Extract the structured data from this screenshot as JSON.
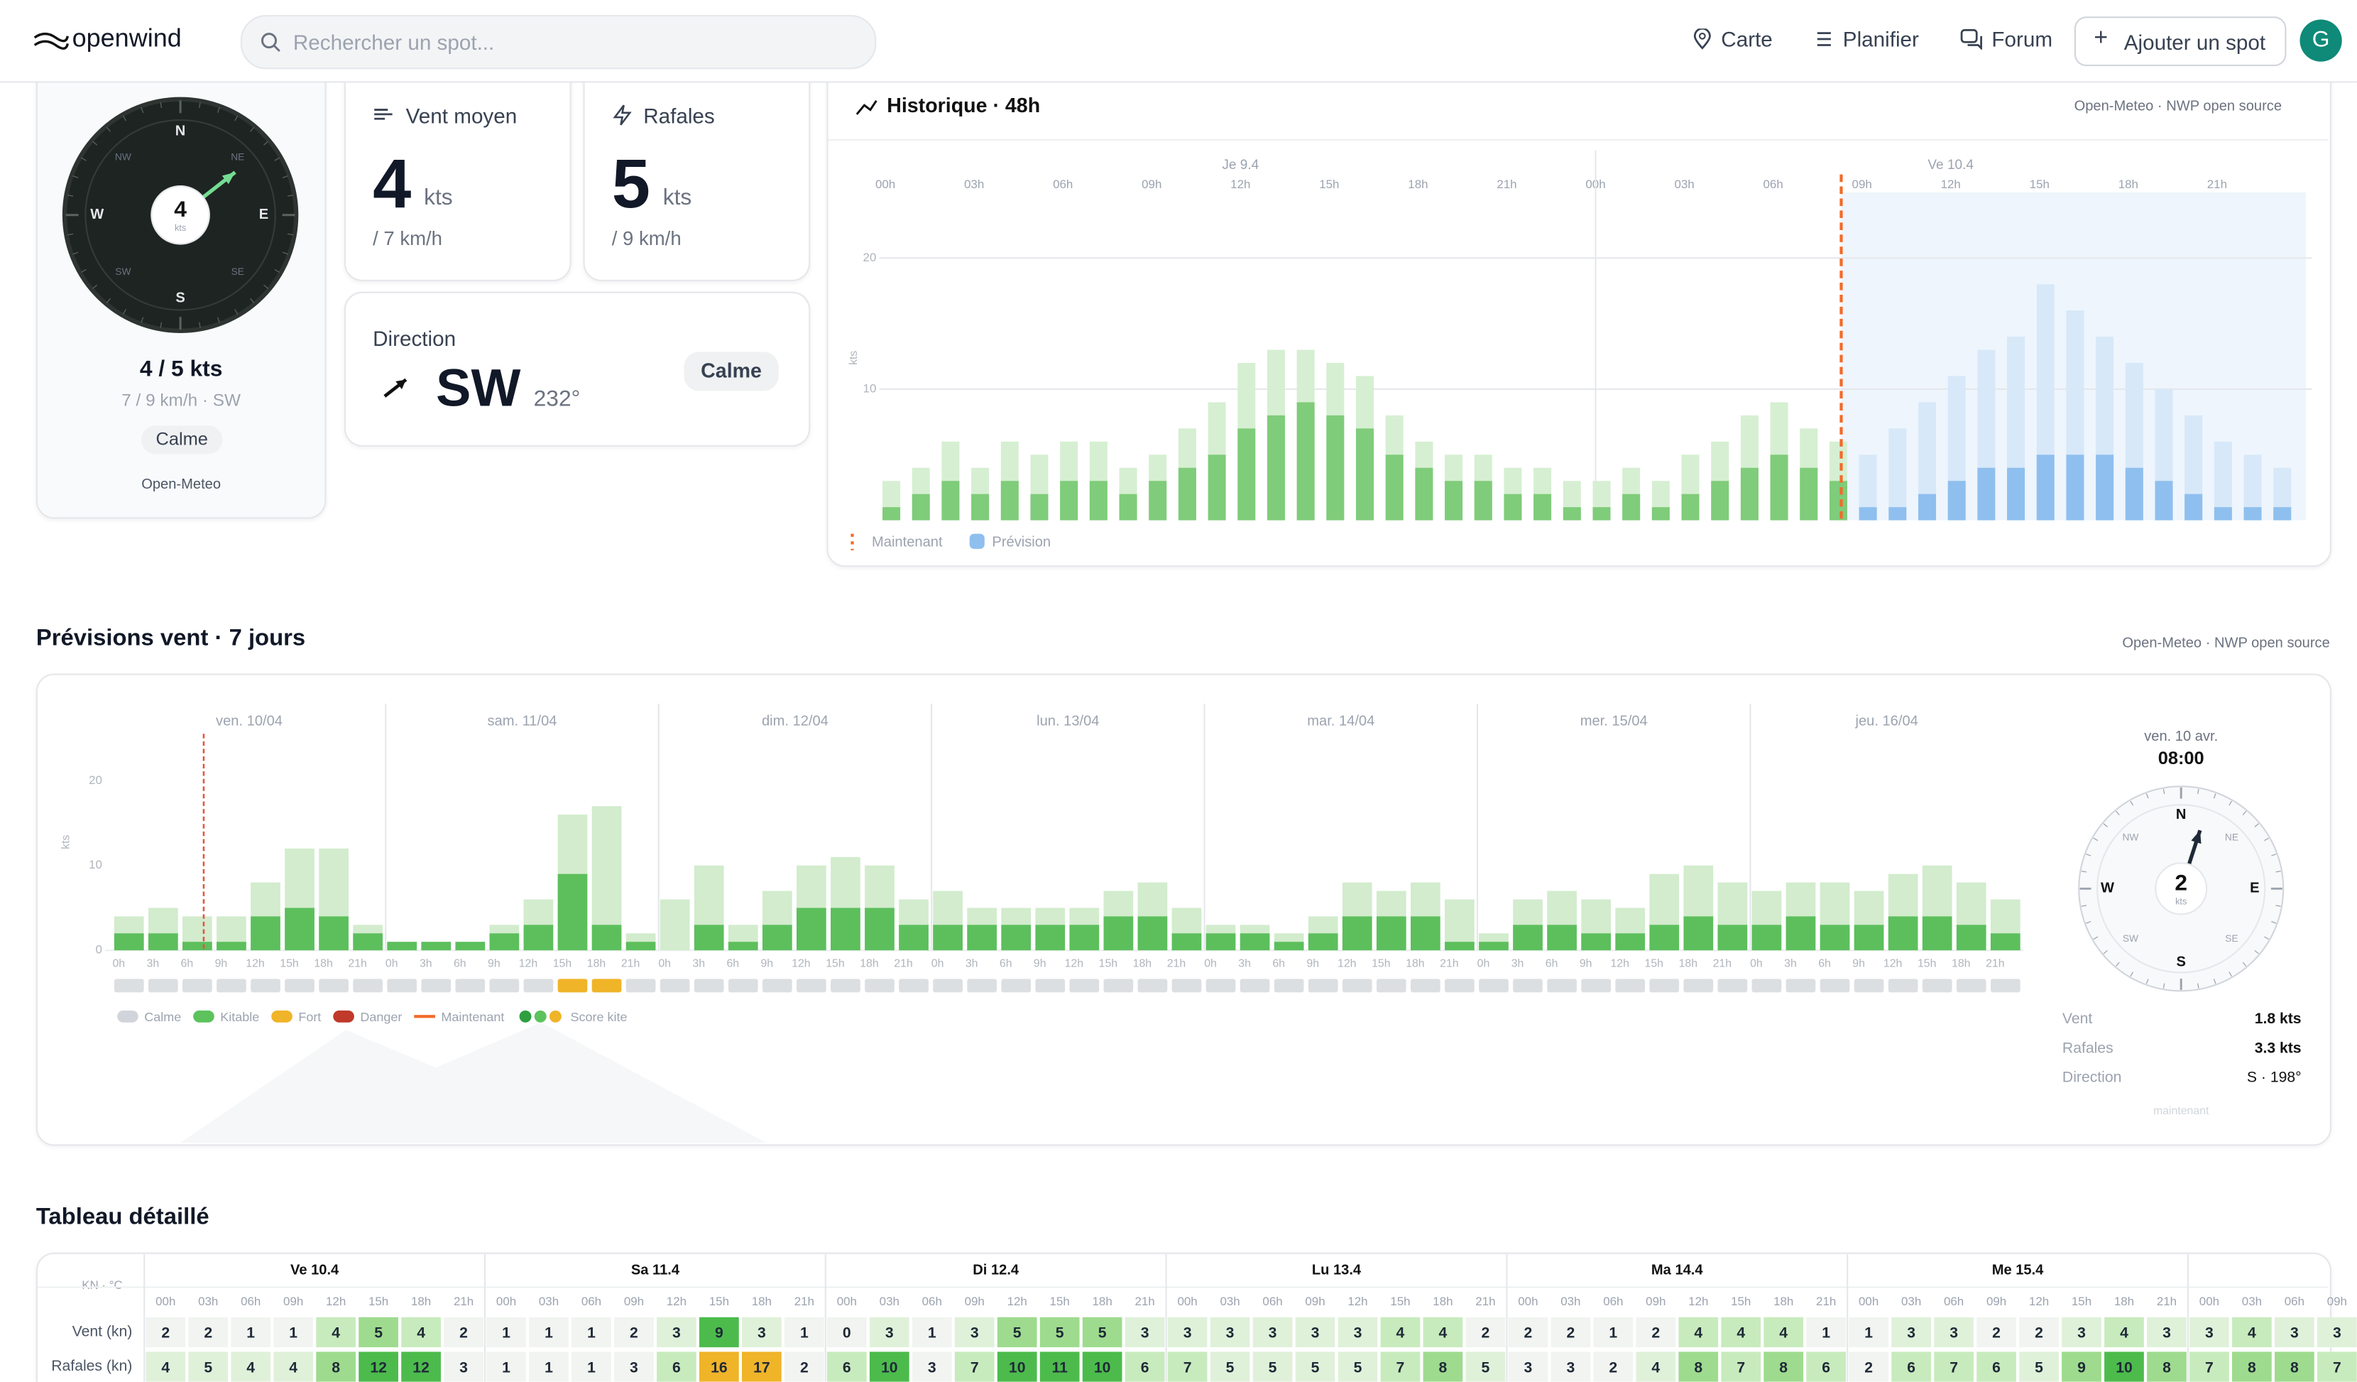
{
  "header": {
    "logo": "openwind",
    "search_placeholder": "Rechercher un spot...",
    "nav": [
      "Carte",
      "Planifier",
      "Forum"
    ],
    "add_spot": "Ajouter un spot",
    "avatar": "G"
  },
  "current": {
    "speed": "4",
    "unit": "kts",
    "directions": [
      "N",
      "NE",
      "E",
      "SE",
      "S",
      "SW",
      "W",
      "NW"
    ],
    "summary": "4 / 5 kts",
    "summary_sub": "7 / 9 km/h · SW",
    "status": "Calme",
    "source": "Open-Meteo"
  },
  "cards": {
    "wind": {
      "title": "Vent moyen",
      "value": "4",
      "unit": "kts",
      "sub": "/ 7 km/h"
    },
    "gust": {
      "title": "Rafales",
      "value": "5",
      "unit": "kts",
      "sub": "/ 9 km/h"
    },
    "direction": {
      "title": "Direction",
      "value": "SW",
      "degrees": "232°",
      "status": "Calme"
    }
  },
  "sections": {
    "forecast": "Prévisions vent · 7 jours",
    "table": "Tableau détaillé"
  },
  "chart_data": [
    {
      "type": "bar",
      "title": "Historique · 48h",
      "source": "Open-Meteo · NWP open source",
      "y_label": "kts",
      "xlim": [
        0,
        48
      ],
      "ylim": [
        0,
        25
      ],
      "yticks": [
        10,
        20
      ],
      "grid": true,
      "xticks": [
        {
          "value": 0,
          "label": "00h"
        },
        {
          "value": 3,
          "label": "03h"
        },
        {
          "value": 6,
          "label": "06h"
        },
        {
          "value": 9,
          "label": "09h"
        },
        {
          "value": 12,
          "label": "12h"
        },
        {
          "value": 15,
          "label": "15h"
        },
        {
          "value": 18,
          "label": "18h"
        },
        {
          "value": 21,
          "label": "21h"
        },
        {
          "value": 24,
          "label": "00h"
        },
        {
          "value": 27,
          "label": "03h"
        },
        {
          "value": 30,
          "label": "06h"
        },
        {
          "value": 33,
          "label": "09h"
        },
        {
          "value": 36,
          "label": "12h"
        },
        {
          "value": 39,
          "label": "15h"
        },
        {
          "value": 42,
          "label": "18h"
        },
        {
          "value": 45,
          "label": "21h"
        }
      ],
      "day_labels": [
        {
          "value": 12,
          "label": "Je 9.4"
        },
        {
          "value": 36,
          "label": "Ve 10.4"
        }
      ],
      "now": {
        "value": 32.3,
        "label": "Maintenant"
      },
      "x": [
        0,
        1,
        2,
        3,
        4,
        5,
        6,
        7,
        8,
        9,
        10,
        11,
        12,
        13,
        14,
        15,
        16,
        17,
        18,
        19,
        20,
        21,
        22,
        23,
        24,
        25,
        26,
        27,
        28,
        29,
        30,
        31,
        32,
        33,
        34,
        35,
        36,
        37,
        38,
        39,
        40,
        41,
        42,
        43,
        44,
        45,
        46,
        47
      ],
      "series": [
        {
          "color": "#d6efd2",
          "values": [
            3,
            4,
            6,
            4,
            6,
            5,
            6,
            6,
            4,
            5,
            7,
            9,
            12,
            13,
            13,
            12,
            11,
            8,
            6,
            5,
            5,
            4,
            4,
            3,
            3,
            4,
            3,
            5,
            6,
            8,
            9,
            7,
            6,
            null,
            null,
            null,
            null,
            null,
            null,
            null,
            null,
            null,
            null,
            null,
            null,
            null,
            null,
            null
          ]
        },
        {
          "color": "#7fcc7a",
          "values": [
            1,
            2,
            3,
            2,
            3,
            2,
            3,
            3,
            2,
            3,
            4,
            5,
            7,
            8,
            9,
            8,
            7,
            5,
            4,
            3,
            3,
            2,
            2,
            1,
            1,
            2,
            1,
            2,
            3,
            4,
            5,
            4,
            3,
            null,
            null,
            null,
            null,
            null,
            null,
            null,
            null,
            null,
            null,
            null,
            null,
            null,
            null,
            null
          ]
        },
        {
          "color": "#d7e8f9",
          "values": [
            null,
            null,
            null,
            null,
            null,
            null,
            null,
            null,
            null,
            null,
            null,
            null,
            null,
            null,
            null,
            null,
            null,
            null,
            null,
            null,
            null,
            null,
            null,
            null,
            null,
            null,
            null,
            null,
            null,
            null,
            null,
            null,
            null,
            5,
            7,
            9,
            11,
            13,
            14,
            18,
            16,
            14,
            12,
            10,
            8,
            6,
            5,
            4
          ]
        },
        {
          "name": "Prévision",
          "color": "#8fbfee",
          "values": [
            null,
            null,
            null,
            null,
            null,
            null,
            null,
            null,
            null,
            null,
            null,
            null,
            null,
            null,
            null,
            null,
            null,
            null,
            null,
            null,
            null,
            null,
            null,
            null,
            null,
            null,
            null,
            null,
            null,
            null,
            null,
            null,
            null,
            1,
            1,
            2,
            3,
            4,
            4,
            5,
            5,
            5,
            4,
            3,
            2,
            1,
            1,
            1
          ]
        }
      ]
    },
    {
      "type": "bar",
      "title": "Prévisions vent · 7 jours",
      "source": "Open-Meteo · NWP open source",
      "y_label": "kts",
      "xlim": [
        0,
        168
      ],
      "ylim": [
        0,
        25
      ],
      "yticks": [
        0,
        10,
        20
      ],
      "days": [
        "ven. 10/04",
        "sam. 11/04",
        "dim. 12/04",
        "lun. 13/04",
        "mar. 14/04",
        "mer. 15/04",
        "jeu. 16/04"
      ],
      "hours": [
        "0h",
        "3h",
        "6h",
        "9h",
        "12h",
        "15h",
        "18h",
        "21h"
      ],
      "now": {
        "value": 8,
        "label": "Maintenant"
      },
      "legend": [
        {
          "label": "Calme",
          "color": "#d1d5db"
        },
        {
          "label": "Kitable",
          "color": "#5cc35c"
        },
        {
          "label": "Fort",
          "color": "#f0b429"
        },
        {
          "label": "Danger",
          "color": "#c0392b"
        }
      ],
      "score_label": "Score kite",
      "x": [
        0,
        3,
        6,
        9,
        12,
        15,
        18,
        21,
        24,
        27,
        30,
        33,
        36,
        39,
        42,
        45,
        48,
        51,
        54,
        57,
        60,
        63,
        66,
        69,
        72,
        75,
        78,
        81,
        84,
        87,
        90,
        93,
        96,
        99,
        102,
        105,
        108,
        111,
        114,
        117,
        120,
        123,
        126,
        129,
        132,
        135,
        138,
        141,
        144,
        147,
        150,
        153,
        156,
        159,
        162,
        165
      ],
      "series": [
        {
          "color": "#5cbf5c",
          "values": [
            2,
            2,
            1,
            1,
            4,
            5,
            4,
            2,
            1,
            1,
            1,
            2,
            3,
            9,
            3,
            1,
            0,
            3,
            1,
            3,
            5,
            5,
            5,
            3,
            3,
            3,
            3,
            3,
            3,
            4,
            4,
            2,
            2,
            2,
            1,
            2,
            4,
            4,
            4,
            1,
            1,
            3,
            3,
            2,
            2,
            3,
            4,
            3,
            3,
            4,
            3,
            3,
            4,
            4,
            3,
            2
          ]
        },
        {
          "color": "#d2eccd",
          "values": [
            4,
            5,
            4,
            4,
            8,
            12,
            12,
            3,
            1,
            1,
            1,
            3,
            6,
            16,
            17,
            2,
            6,
            10,
            3,
            7,
            10,
            11,
            10,
            6,
            7,
            5,
            5,
            5,
            5,
            7,
            8,
            5,
            3,
            3,
            2,
            4,
            8,
            7,
            8,
            6,
            2,
            6,
            7,
            6,
            5,
            9,
            10,
            8,
            7,
            8,
            8,
            7,
            9,
            10,
            8,
            6
          ]
        }
      ]
    }
  ],
  "forecast_panel": {
    "date": "ven. 10 avr.",
    "time": "08:00",
    "speed": "2",
    "unit": "kts",
    "rows": [
      [
        "Vent",
        "1.8 kts"
      ],
      [
        "Rafales",
        "3.3 kts"
      ],
      [
        "Direction",
        "S · 198°"
      ]
    ],
    "note": "maintenant"
  },
  "table": {
    "corner": "KN · °C",
    "row_labels": [
      "Vent (kn)",
      "Rafales (kn)"
    ],
    "days": [
      "Ve 10.4",
      "Sa 11.4",
      "Di 12.4",
      "Lu 13.4",
      "Ma 14.4",
      "Me 15.4"
    ],
    "hours": [
      "00h",
      "03h",
      "06h",
      "09h",
      "12h",
      "15h",
      "18h",
      "21h"
    ]
  }
}
